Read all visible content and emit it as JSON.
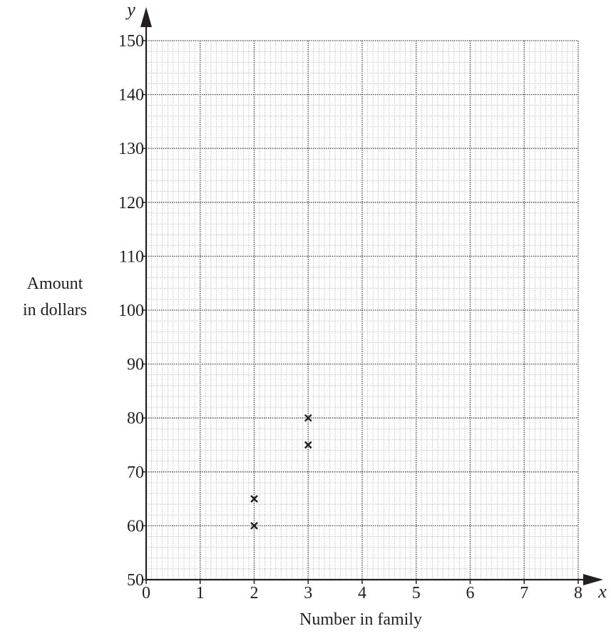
{
  "chart_data": {
    "type": "scatter",
    "xlabel": "Number in family",
    "ylabel_lines": [
      "Amount",
      "in dollars"
    ],
    "x_axis_symbol": "x",
    "y_axis_symbol": "y",
    "xlim": [
      0,
      8
    ],
    "ylim": [
      50,
      150
    ],
    "x_ticks": [
      0,
      1,
      2,
      3,
      4,
      5,
      6,
      7,
      8
    ],
    "y_ticks": [
      50,
      60,
      70,
      80,
      90,
      100,
      110,
      120,
      130,
      140,
      150
    ],
    "x_minor_step": 0.1,
    "y_minor_step": 2,
    "grid": true,
    "marker": "x",
    "points": [
      {
        "x": 2,
        "y": 60
      },
      {
        "x": 2,
        "y": 65
      },
      {
        "x": 3,
        "y": 75
      },
      {
        "x": 3,
        "y": 80
      }
    ]
  },
  "colors": {
    "ink": "#231f20",
    "grid_major": "#444444",
    "grid_minor": "#9a9a9a"
  }
}
